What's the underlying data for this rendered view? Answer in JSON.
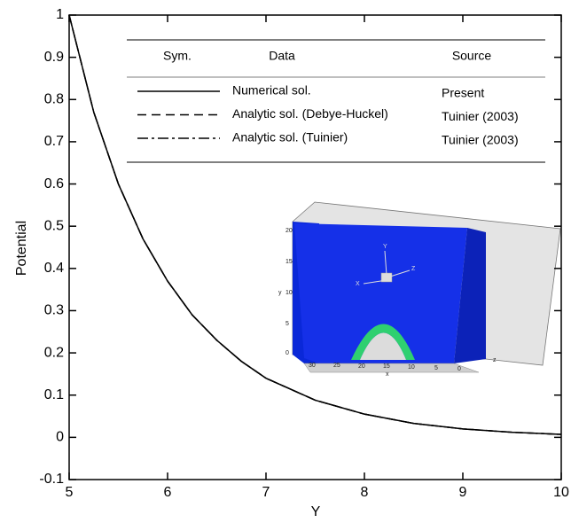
{
  "chart_data": {
    "type": "line",
    "x_label": "Y",
    "y_label": "Potential",
    "x": [
      5,
      5.25,
      5.5,
      5.75,
      6,
      6.25,
      6.5,
      6.75,
      7,
      7.5,
      8,
      8.5,
      9,
      9.5,
      10
    ],
    "series": [
      {
        "name": "Numerical sol.",
        "source": "Present",
        "color": "#000000",
        "dash": "solid",
        "values": [
          1,
          0.77,
          0.6,
          0.47,
          0.37,
          0.29,
          0.23,
          0.18,
          0.14,
          0.088,
          0.055,
          0.033,
          0.02,
          0.012,
          0.007
        ]
      },
      {
        "name": "Analytic sol. (Debye-Huckel)",
        "source": "Tuinier (2003)",
        "color": "#000000",
        "dash": "dashed",
        "values": [
          1,
          0.77,
          0.6,
          0.47,
          0.37,
          0.29,
          0.23,
          0.18,
          0.14,
          0.088,
          0.055,
          0.033,
          0.02,
          0.012,
          0.007
        ]
      },
      {
        "name": "Analytic sol. (Tuinier)",
        "source": "Tuinier (2003)",
        "color": "#000000",
        "dash": "dashdot",
        "values": [
          1,
          0.77,
          0.6,
          0.47,
          0.37,
          0.29,
          0.23,
          0.18,
          0.14,
          0.088,
          0.055,
          0.033,
          0.02,
          0.012,
          0.007
        ]
      }
    ],
    "legend_headers": [
      "Sym.",
      "Data",
      "Source"
    ],
    "xlim": [
      5,
      10
    ],
    "ylim": [
      -0.1,
      1
    ],
    "xticks": [
      5,
      6,
      7,
      8,
      9,
      10
    ],
    "yticks": [
      -0.1,
      0,
      0.1,
      0.2,
      0.3,
      0.4,
      0.5,
      0.6,
      0.7,
      0.8,
      0.9,
      1
    ],
    "grid": false,
    "inset": {
      "x_ticks": [
        "30",
        "25",
        "20",
        "15",
        "10",
        "5",
        "0"
      ],
      "y_ticks": [
        "20",
        "15",
        "10",
        "5",
        "0"
      ],
      "x_label": "x",
      "y_label": "y",
      "z_label": "z",
      "triad": [
        "X",
        "Y",
        "Z"
      ]
    }
  }
}
